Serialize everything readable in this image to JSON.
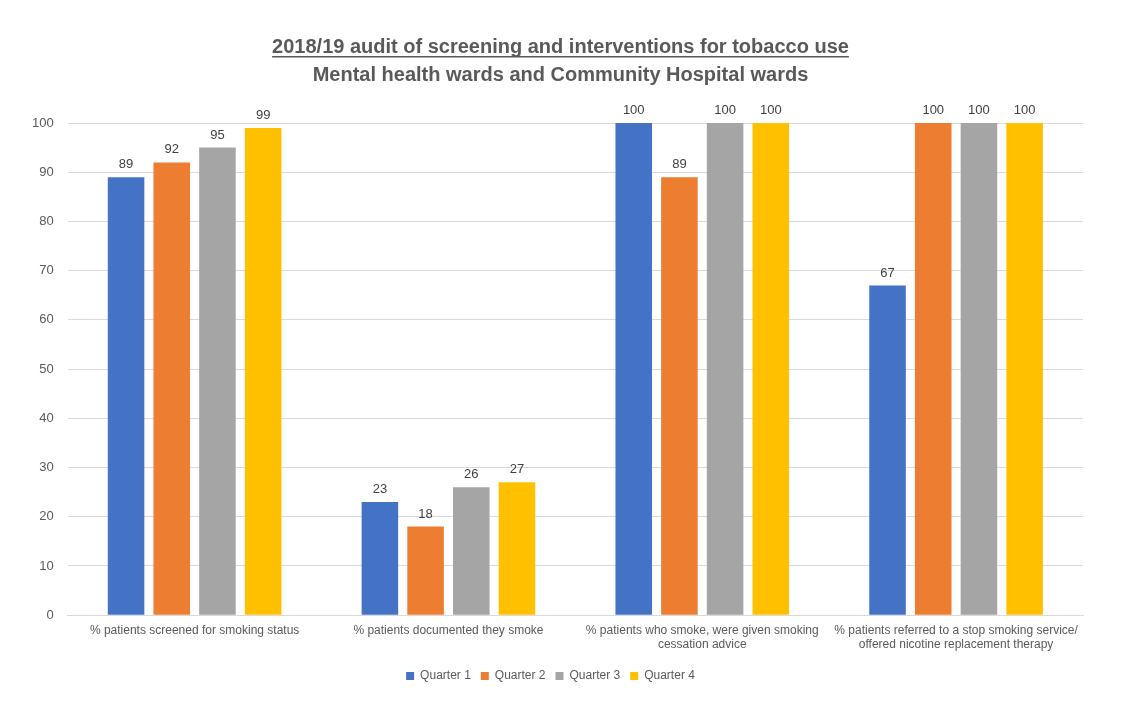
{
  "chart_data": {
    "type": "bar",
    "title": "2018/19 audit of screening and interventions for tobacco use",
    "subtitle": "Mental health wards and Community Hospital wards",
    "categories": [
      "% patients screened for smoking status",
      "% patients documented they smoke",
      "% patients who smoke, were given smoking cessation advice",
      "% patients referred to a stop smoking service/ offered nicotine replacement therapy"
    ],
    "series": [
      {
        "name": "Quarter 1",
        "color": "#4472c4",
        "values": [
          89,
          23,
          100,
          67
        ]
      },
      {
        "name": "Quarter 2",
        "color": "#ed7d31",
        "values": [
          92,
          18,
          89,
          100
        ]
      },
      {
        "name": "Quarter 3",
        "color": "#a5a5a5",
        "values": [
          95,
          26,
          100,
          100
        ]
      },
      {
        "name": "Quarter 4",
        "color": "#ffc000",
        "values": [
          99,
          27,
          100,
          100
        ]
      }
    ],
    "ylim": [
      0,
      100
    ],
    "yticks": [
      0,
      10,
      20,
      30,
      40,
      50,
      60,
      70,
      80,
      90,
      100
    ],
    "grid": "y",
    "legend": "bottom",
    "data_labels": true
  }
}
